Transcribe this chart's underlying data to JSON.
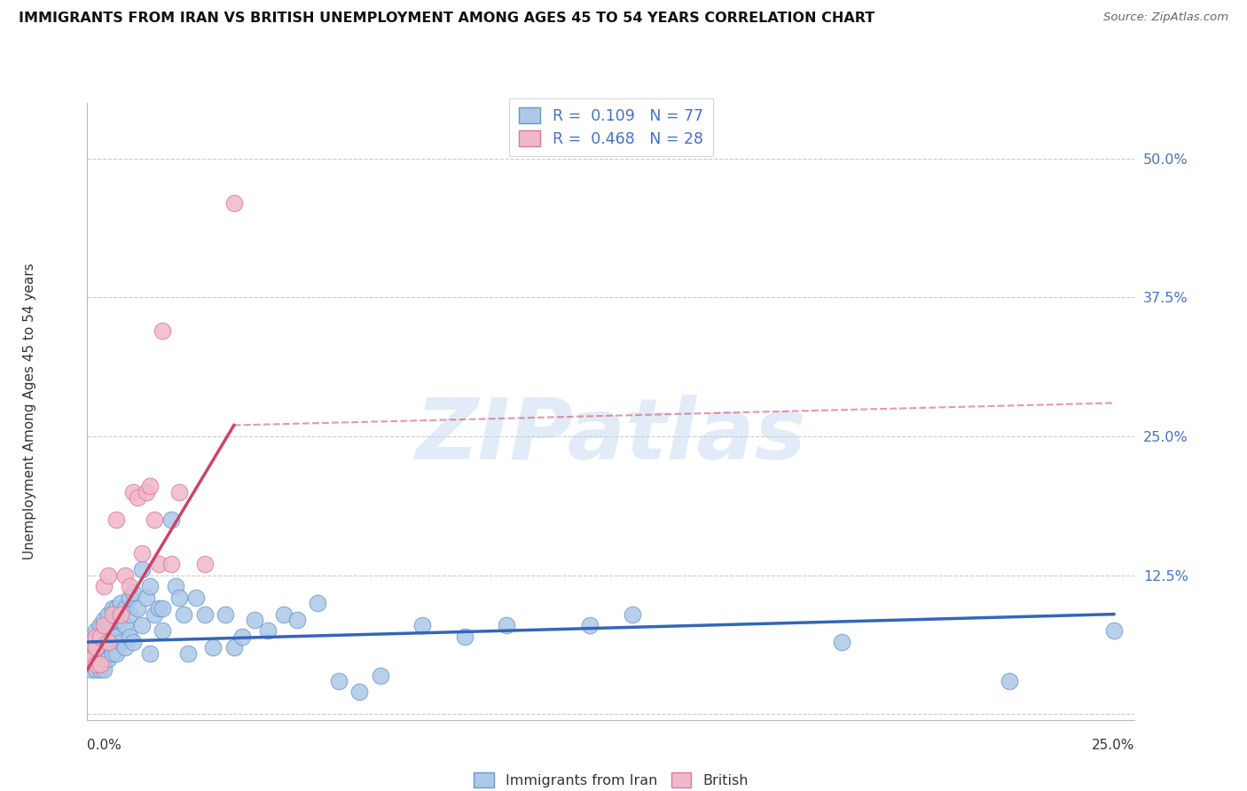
{
  "title": "IMMIGRANTS FROM IRAN VS BRITISH UNEMPLOYMENT AMONG AGES 45 TO 54 YEARS CORRELATION CHART",
  "source": "Source: ZipAtlas.com",
  "ylabel": "Unemployment Among Ages 45 to 54 years",
  "xtick_left": "0.0%",
  "xtick_right": "25.0%",
  "xlim": [
    0.0,
    0.25
  ],
  "ylim": [
    -0.005,
    0.55
  ],
  "ytick_values": [
    0.0,
    0.125,
    0.25,
    0.375,
    0.5
  ],
  "ytick_labels": [
    "",
    "12.5%",
    "25.0%",
    "37.5%",
    "50.0%"
  ],
  "color_iran_fill": "#adc8e8",
  "color_iran_edge": "#6699cc",
  "color_iran_line": "#3366bb",
  "color_british_fill": "#f0b8c8",
  "color_british_edge": "#dd7799",
  "color_british_line": "#cc4466",
  "legend_label1": "R =  0.109   N = 77",
  "legend_label2": "R =  0.468   N = 28",
  "legend_bottom_1": "Immigrants from Iran",
  "legend_bottom_2": "British",
  "watermark": "ZIPatlas",
  "scatter_iran_x": [
    0.001,
    0.001,
    0.001,
    0.002,
    0.002,
    0.002,
    0.002,
    0.003,
    0.003,
    0.003,
    0.003,
    0.003,
    0.004,
    0.004,
    0.004,
    0.004,
    0.004,
    0.005,
    0.005,
    0.005,
    0.005,
    0.006,
    0.006,
    0.006,
    0.006,
    0.007,
    0.007,
    0.007,
    0.007,
    0.008,
    0.008,
    0.008,
    0.009,
    0.009,
    0.009,
    0.01,
    0.01,
    0.01,
    0.011,
    0.011,
    0.012,
    0.013,
    0.013,
    0.014,
    0.015,
    0.015,
    0.016,
    0.017,
    0.018,
    0.018,
    0.02,
    0.021,
    0.022,
    0.023,
    0.024,
    0.026,
    0.028,
    0.03,
    0.033,
    0.035,
    0.037,
    0.04,
    0.043,
    0.047,
    0.05,
    0.055,
    0.06,
    0.065,
    0.07,
    0.08,
    0.09,
    0.1,
    0.12,
    0.13,
    0.18,
    0.22,
    0.245
  ],
  "scatter_iran_y": [
    0.06,
    0.05,
    0.04,
    0.075,
    0.065,
    0.055,
    0.04,
    0.08,
    0.07,
    0.06,
    0.05,
    0.04,
    0.085,
    0.075,
    0.06,
    0.05,
    0.04,
    0.09,
    0.08,
    0.065,
    0.05,
    0.095,
    0.08,
    0.07,
    0.055,
    0.095,
    0.085,
    0.07,
    0.055,
    0.1,
    0.085,
    0.065,
    0.095,
    0.08,
    0.06,
    0.105,
    0.09,
    0.07,
    0.11,
    0.065,
    0.095,
    0.13,
    0.08,
    0.105,
    0.115,
    0.055,
    0.09,
    0.095,
    0.095,
    0.075,
    0.175,
    0.115,
    0.105,
    0.09,
    0.055,
    0.105,
    0.09,
    0.06,
    0.09,
    0.06,
    0.07,
    0.085,
    0.075,
    0.09,
    0.085,
    0.1,
    0.03,
    0.02,
    0.035,
    0.08,
    0.07,
    0.08,
    0.08,
    0.09,
    0.065,
    0.03,
    0.075
  ],
  "scatter_british_x": [
    0.001,
    0.001,
    0.002,
    0.002,
    0.002,
    0.003,
    0.003,
    0.004,
    0.004,
    0.005,
    0.005,
    0.006,
    0.007,
    0.008,
    0.009,
    0.01,
    0.011,
    0.012,
    0.013,
    0.014,
    0.015,
    0.016,
    0.017,
    0.018,
    0.02,
    0.022,
    0.028,
    0.035
  ],
  "scatter_british_y": [
    0.065,
    0.05,
    0.07,
    0.06,
    0.045,
    0.07,
    0.045,
    0.115,
    0.08,
    0.125,
    0.065,
    0.09,
    0.175,
    0.09,
    0.125,
    0.115,
    0.2,
    0.195,
    0.145,
    0.2,
    0.205,
    0.175,
    0.135,
    0.345,
    0.135,
    0.2,
    0.135,
    0.46
  ],
  "iran_trendline": [
    [
      0.0,
      0.065
    ],
    [
      0.245,
      0.09
    ]
  ],
  "british_trendline_solid": [
    [
      0.0,
      0.04
    ],
    [
      0.035,
      0.26
    ]
  ],
  "british_trendline_dash": [
    [
      0.035,
      0.26
    ],
    [
      0.245,
      0.28
    ]
  ]
}
